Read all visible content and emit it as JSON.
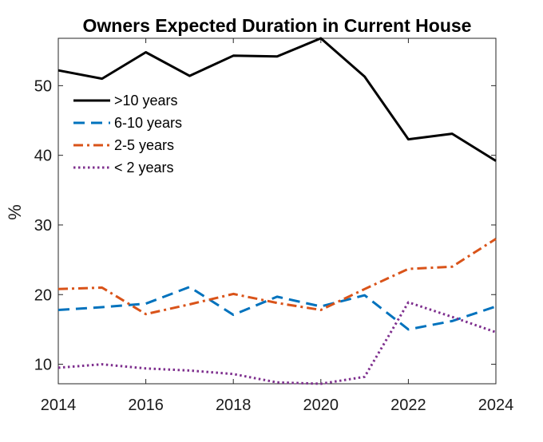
{
  "chart_data": {
    "type": "line",
    "title": "Owners Expected Duration in Current House",
    "xlabel": "",
    "ylabel": "%",
    "xlim": [
      2014,
      2024
    ],
    "ylim": [
      7.2,
      56.8
    ],
    "x": [
      2014,
      2015,
      2016,
      2017,
      2018,
      2019,
      2020,
      2021,
      2022,
      2023,
      2024
    ],
    "x_ticks": [
      2014,
      2016,
      2018,
      2020,
      2022,
      2024
    ],
    "y_ticks": [
      10,
      20,
      30,
      40,
      50
    ],
    "grid": false,
    "legend_position": "top-left",
    "series": [
      {
        "name": ">10 years",
        "color": "#000000",
        "style": "solid",
        "values": [
          52.2,
          51.0,
          54.8,
          51.4,
          54.3,
          54.2,
          56.8,
          51.3,
          42.3,
          43.1,
          39.2
        ]
      },
      {
        "name": "6-10 years",
        "color": "#0072BD",
        "style": "dash",
        "values": [
          17.8,
          18.2,
          18.7,
          21.1,
          17.1,
          19.7,
          18.3,
          19.9,
          15.0,
          16.2,
          18.3
        ]
      },
      {
        "name": "2-5 years",
        "color": "#D95319",
        "style": "dashdot",
        "values": [
          20.8,
          21.0,
          17.2,
          18.6,
          20.1,
          18.8,
          17.8,
          20.8,
          23.7,
          24.0,
          28.0
        ]
      },
      {
        "name": "< 2 years",
        "color": "#7E2F8E",
        "style": "dot",
        "values": [
          9.5,
          10.0,
          9.4,
          9.1,
          8.6,
          7.4,
          7.2,
          8.2,
          18.9,
          16.8,
          14.6
        ]
      }
    ]
  }
}
